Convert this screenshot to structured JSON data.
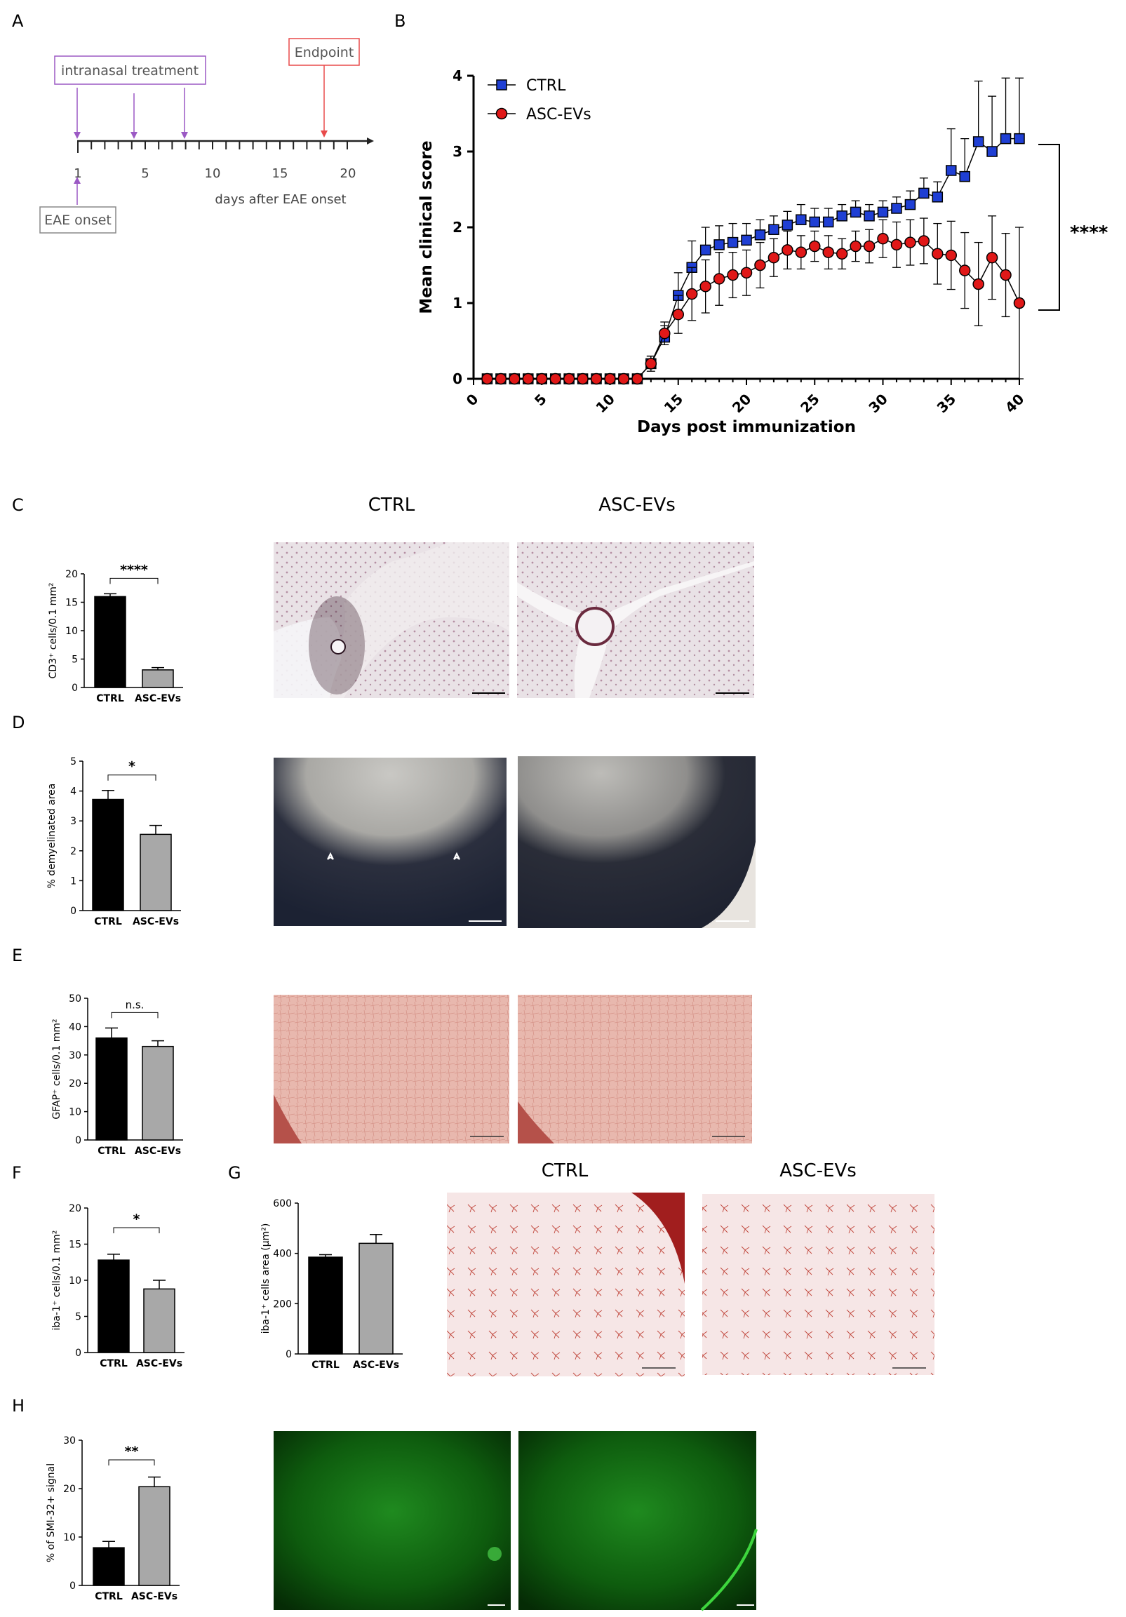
{
  "panel_letters": {
    "A": "A",
    "B": "B",
    "C": "C",
    "D": "D",
    "E": "E",
    "F": "F",
    "G": "G",
    "H": "H"
  },
  "colors": {
    "ctrl": "#1f3fd4",
    "asc": "#e01818",
    "bar_ctrl": "#000000",
    "bar_asc": "#a8a8a8",
    "timeline_arrow": "#9b59c4",
    "endpoint": "#e84a4a"
  },
  "panel_a": {
    "treatment_label": "intranasal treatment",
    "endpoint_label": "Endpoint",
    "onset_label": "EAE onset",
    "axis_label": "days after EAE onset",
    "ticks": [
      "1",
      "5",
      "10",
      "15",
      "20"
    ]
  },
  "image_headers": {
    "ctrl": "CTRL",
    "asc": "ASC-EVs"
  },
  "chart_data": [
    {
      "panel": "B",
      "type": "line",
      "xlabel": "Days post immunization",
      "ylabel": "Mean clinical score",
      "xlim": [
        0,
        40
      ],
      "ylim": [
        0,
        4
      ],
      "xticks": [
        "0",
        "5",
        "10",
        "15",
        "20",
        "25",
        "30",
        "35",
        "40"
      ],
      "yticks": [
        "0",
        "1",
        "2",
        "3",
        "4"
      ],
      "significance": "****",
      "legend_position": "top-left",
      "series": [
        {
          "name": "CTRL",
          "marker": "square",
          "x": [
            1,
            2,
            3,
            4,
            5,
            6,
            7,
            8,
            9,
            10,
            11,
            12,
            13,
            14,
            15,
            16,
            17,
            18,
            19,
            20,
            21,
            22,
            23,
            24,
            25,
            26,
            27,
            28,
            29,
            30,
            31,
            32,
            33,
            34,
            35,
            36,
            37,
            38,
            39,
            40
          ],
          "y": [
            0,
            0,
            0,
            0,
            0,
            0,
            0,
            0,
            0,
            0,
            0,
            0,
            0.2,
            0.55,
            1.1,
            1.47,
            1.7,
            1.77,
            1.8,
            1.83,
            1.9,
            1.97,
            2.03,
            2.1,
            2.07,
            2.07,
            2.15,
            2.2,
            2.15,
            2.2,
            2.25,
            2.3,
            2.45,
            2.4,
            2.75,
            2.67,
            3.13,
            3.0,
            3.17,
            3.17
          ],
          "err": [
            0,
            0,
            0,
            0,
            0,
            0,
            0,
            0,
            0,
            0,
            0,
            0,
            0.1,
            0.15,
            0.3,
            0.35,
            0.3,
            0.25,
            0.25,
            0.22,
            0.2,
            0.18,
            0.18,
            0.2,
            0.18,
            0.18,
            0.15,
            0.15,
            0.15,
            0.15,
            0.15,
            0.18,
            0.2,
            0.2,
            0.55,
            0.5,
            0.8,
            0.73,
            0.8,
            0.8
          ]
        },
        {
          "name": "ASC-EVs",
          "marker": "circle",
          "x": [
            1,
            2,
            3,
            4,
            5,
            6,
            7,
            8,
            9,
            10,
            11,
            12,
            13,
            14,
            15,
            16,
            17,
            18,
            19,
            20,
            21,
            22,
            23,
            24,
            25,
            26,
            27,
            28,
            29,
            30,
            31,
            32,
            33,
            34,
            35,
            36,
            37,
            38,
            39,
            40
          ],
          "y": [
            0,
            0,
            0,
            0,
            0,
            0,
            0,
            0,
            0,
            0,
            0,
            0,
            0.2,
            0.6,
            0.85,
            1.12,
            1.22,
            1.32,
            1.37,
            1.4,
            1.5,
            1.6,
            1.7,
            1.67,
            1.75,
            1.67,
            1.65,
            1.75,
            1.75,
            1.85,
            1.77,
            1.8,
            1.82,
            1.65,
            1.63,
            1.43,
            1.25,
            1.6,
            1.37,
            1.0
          ],
          "err": [
            0,
            0,
            0,
            0,
            0,
            0,
            0,
            0,
            0,
            0,
            0,
            0,
            0.1,
            0.15,
            0.25,
            0.35,
            0.35,
            0.35,
            0.3,
            0.3,
            0.3,
            0.25,
            0.25,
            0.22,
            0.2,
            0.22,
            0.2,
            0.2,
            0.22,
            0.25,
            0.3,
            0.3,
            0.3,
            0.4,
            0.45,
            0.5,
            0.55,
            0.55,
            0.55,
            1.0
          ]
        }
      ]
    },
    {
      "panel": "C",
      "type": "bar",
      "categories": [
        "CTRL",
        "ASC-EVs"
      ],
      "values": [
        16,
        3.1
      ],
      "errors": [
        0.5,
        0.4
      ],
      "ylim": [
        0,
        20
      ],
      "yticks": [
        "0",
        "5",
        "10",
        "15",
        "20"
      ],
      "ylabel": "CD3⁺ cells/0.1 mm²",
      "significance": "****"
    },
    {
      "panel": "D",
      "type": "bar",
      "categories": [
        "CTRL",
        "ASC-EVs"
      ],
      "values": [
        3.72,
        2.55
      ],
      "errors": [
        0.3,
        0.3
      ],
      "ylim": [
        0,
        5
      ],
      "yticks": [
        "0",
        "1",
        "2",
        "3",
        "4",
        "5"
      ],
      "ylabel": "% demyelinated area",
      "significance": "*"
    },
    {
      "panel": "E",
      "type": "bar",
      "categories": [
        "CTRL",
        "ASC-EVs"
      ],
      "values": [
        36,
        33
      ],
      "errors": [
        3.5,
        2
      ],
      "ylim": [
        0,
        50
      ],
      "yticks": [
        "0",
        "10",
        "20",
        "30",
        "40",
        "50"
      ],
      "ylabel": "GFAP⁺ cells/0.1 mm²",
      "significance": "n.s."
    },
    {
      "panel": "F",
      "type": "bar",
      "categories": [
        "CTRL",
        "ASC-EVs"
      ],
      "values": [
        12.8,
        8.8
      ],
      "errors": [
        0.8,
        1.2
      ],
      "ylim": [
        0,
        20
      ],
      "yticks": [
        "0",
        "5",
        "10",
        "15",
        "20"
      ],
      "ylabel": "iba-1⁺ cells/0.1 mm²",
      "significance": "*"
    },
    {
      "panel": "G",
      "type": "bar",
      "categories": [
        "CTRL",
        "ASC-EVs"
      ],
      "values": [
        385,
        440
      ],
      "errors": [
        10,
        35
      ],
      "ylim": [
        0,
        600
      ],
      "yticks": [
        "0",
        "200",
        "400",
        "600"
      ],
      "ylabel": "iba-1⁺ cells area (μm²)",
      "significance": ""
    },
    {
      "panel": "H",
      "type": "bar",
      "categories": [
        "CTRL",
        "ASC-EVs"
      ],
      "values": [
        7.8,
        20.4
      ],
      "errors": [
        1.3,
        2
      ],
      "ylim": [
        0,
        30
      ],
      "yticks": [
        "0",
        "10",
        "20",
        "30"
      ],
      "ylabel": "% of SMI-32+ signal",
      "significance": "**"
    }
  ]
}
